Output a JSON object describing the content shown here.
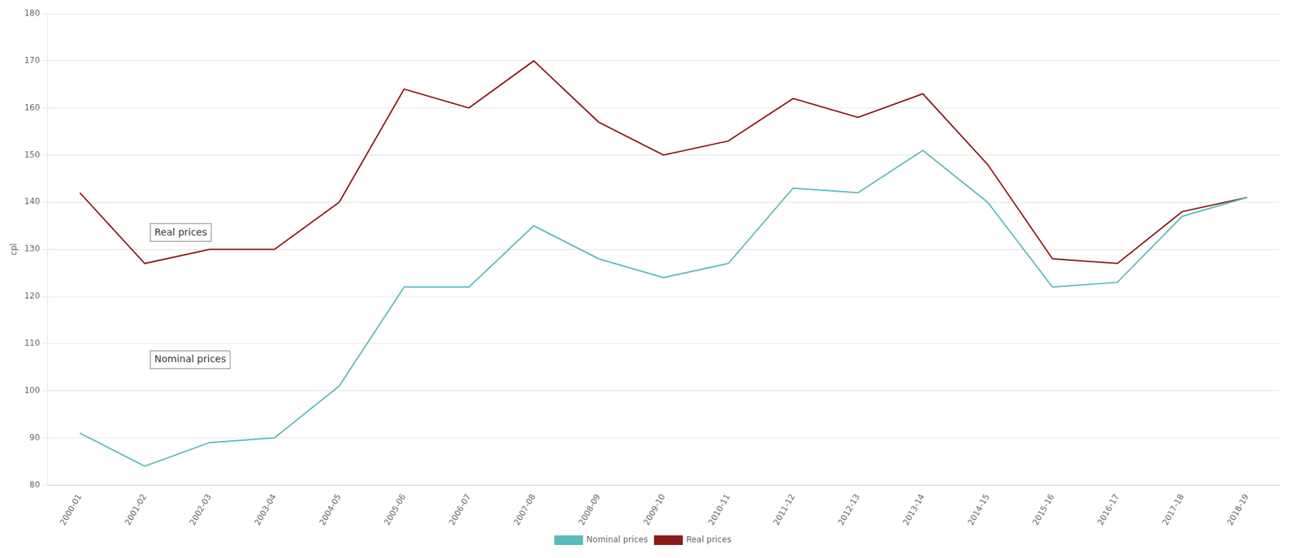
{
  "chart_data": {
    "type": "line",
    "ylabel": "cpl",
    "categories": [
      "2000-01",
      "2001-02",
      "2002-03",
      "2003-04",
      "2004-05",
      "2005-06",
      "2006-07",
      "2007-08",
      "2008-09",
      "2009-10",
      "2010-11",
      "2011-12",
      "2012-13",
      "2013-14",
      "2014-15",
      "2015-16",
      "2016-17",
      "2017-18",
      "2018-19"
    ],
    "series": [
      {
        "name": "Nominal prices",
        "color": "#5abcbc",
        "values": [
          91,
          84,
          89,
          90,
          101,
          122,
          122,
          135,
          128,
          124,
          127,
          143,
          142,
          151,
          140,
          122,
          123,
          137,
          141
        ]
      },
      {
        "name": "Real prices",
        "color": "#8b1a1a",
        "values": [
          142,
          127,
          130,
          130,
          140,
          164,
          160,
          170,
          157,
          150,
          153,
          162,
          158,
          163,
          148,
          128,
          127,
          138,
          141
        ]
      }
    ],
    "ylim": [
      80,
      180
    ],
    "yticks": [
      80,
      90,
      100,
      110,
      120,
      130,
      140,
      150,
      160,
      170,
      180
    ],
    "grid": true,
    "legend": "bottom",
    "annotations": [
      {
        "text": "Real prices",
        "x": 1.15,
        "y": 133
      },
      {
        "text": "Nominal prices",
        "x": 1.15,
        "y": 106
      }
    ]
  }
}
